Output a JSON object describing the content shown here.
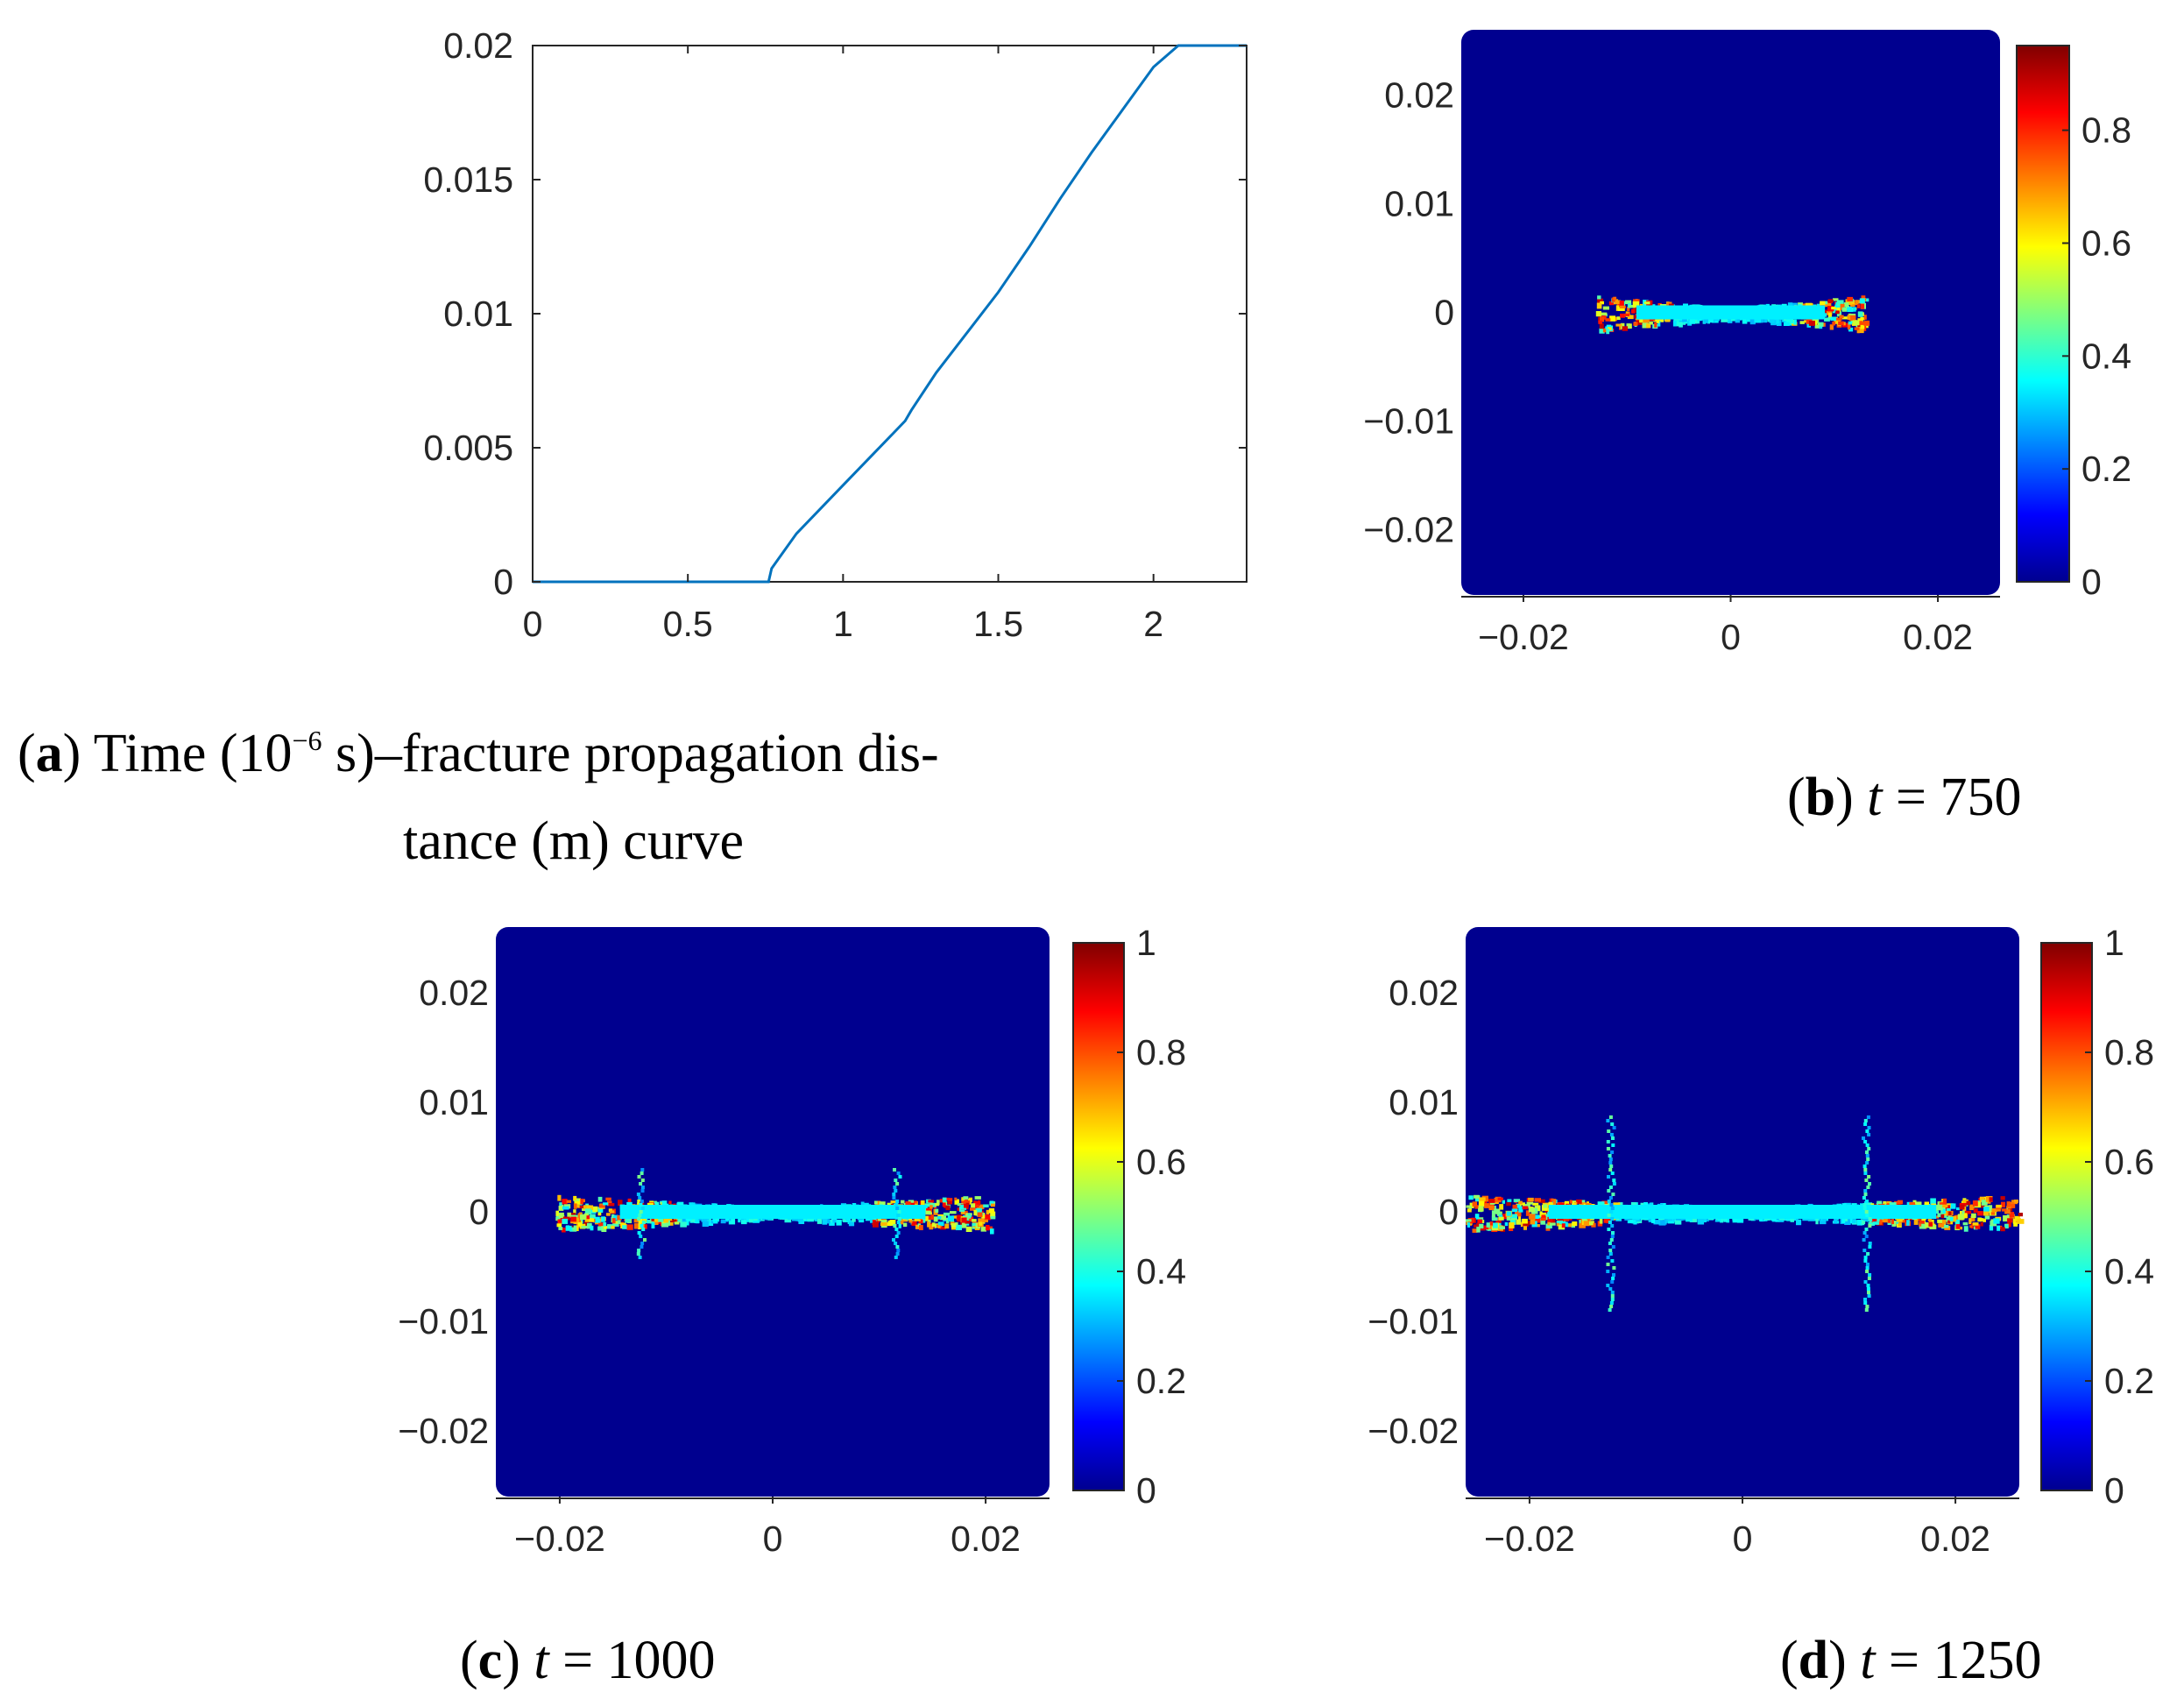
{
  "chart_data": [
    {
      "panel": "a",
      "type": "line",
      "caption": {
        "label": "a",
        "line1": "Time (10",
        "exp": "−6",
        "line1_rest": " s)–fracture propagation dis-",
        "line2": "tance (m) curve"
      },
      "xlim": [
        0,
        2.3
      ],
      "ylim": [
        0,
        0.02
      ],
      "xticks": [
        0,
        0.5,
        1,
        1.5,
        2
      ],
      "xtick_labels": [
        "0",
        "0.5",
        "1",
        "1.5",
        "2"
      ],
      "yticks": [
        0,
        0.005,
        0.01,
        0.015,
        0.02
      ],
      "ytick_labels": [
        "0",
        "0.005",
        "0.01",
        "0.015",
        "0.02"
      ],
      "line_color": "#0072BD",
      "x": [
        0,
        0.76,
        0.77,
        0.85,
        1.0,
        1.1,
        1.2,
        1.22,
        1.3,
        1.4,
        1.5,
        1.6,
        1.7,
        1.8,
        1.9,
        2.0,
        2.08,
        2.3
      ],
      "y": [
        0,
        0,
        0.0005,
        0.0018,
        0.0036,
        0.0048,
        0.006,
        0.0064,
        0.0078,
        0.0093,
        0.0108,
        0.0125,
        0.0143,
        0.016,
        0.0176,
        0.0192,
        0.02,
        0.02
      ]
    },
    {
      "panel": "b",
      "type": "heatmap",
      "caption": {
        "label": "b",
        "var": "t",
        "text": " = 750"
      },
      "xlim": [
        -0.026,
        0.026
      ],
      "ylim": [
        -0.026,
        0.026
      ],
      "xticks": [
        -0.02,
        0,
        0.02
      ],
      "xtick_labels": [
        "−0.02",
        "0",
        "0.02"
      ],
      "yticks": [
        0.02,
        0.01,
        0,
        -0.01,
        -0.02
      ],
      "ytick_labels": [
        "0.02",
        "0.01",
        "0",
        "−0.01",
        "−0.02"
      ],
      "colorbar_ticks": [
        0,
        0.2,
        0.4,
        0.6,
        0.8
      ],
      "colorbar_labels": [
        "0",
        "0.2",
        "0.4",
        "0.6",
        "0.8"
      ],
      "colorbar_max": 0.95,
      "crack_half_length": 0.013,
      "branch_x": []
    },
    {
      "panel": "c",
      "type": "heatmap",
      "caption": {
        "label": "c",
        "var": "t",
        "text": " = 1000"
      },
      "xlim": [
        -0.026,
        0.026
      ],
      "ylim": [
        -0.026,
        0.026
      ],
      "xticks": [
        -0.02,
        0,
        0.02
      ],
      "xtick_labels": [
        "−0.02",
        "0",
        "0.02"
      ],
      "yticks": [
        0.02,
        0.01,
        0,
        -0.01,
        -0.02
      ],
      "ytick_labels": [
        "0.02",
        "0.01",
        "0",
        "−0.01",
        "−0.02"
      ],
      "colorbar_ticks": [
        0,
        0.2,
        0.4,
        0.6,
        0.8,
        1
      ],
      "colorbar_labels": [
        "0",
        "0.2",
        "0.4",
        "0.6",
        "0.8",
        "1"
      ],
      "colorbar_max": 1,
      "crack_half_length": 0.0205,
      "branch_x": [
        -0.0125,
        0.0115
      ]
    },
    {
      "panel": "d",
      "type": "heatmap",
      "caption": {
        "label": "d",
        "var": "t",
        "text": " = 1250"
      },
      "xlim": [
        -0.026,
        0.026
      ],
      "ylim": [
        -0.026,
        0.026
      ],
      "xticks": [
        -0.02,
        0,
        0.02
      ],
      "xtick_labels": [
        "−0.02",
        "0",
        "0.02"
      ],
      "yticks": [
        0.02,
        0.01,
        0,
        -0.01,
        -0.02
      ],
      "ytick_labels": [
        "0.02",
        "0.01",
        "0",
        "−0.01",
        "−0.02"
      ],
      "colorbar_ticks": [
        0,
        0.2,
        0.4,
        0.6,
        0.8,
        1
      ],
      "colorbar_labels": [
        "0",
        "0.2",
        "0.4",
        "0.6",
        "0.8",
        "1"
      ],
      "colorbar_max": 1,
      "crack_half_length": 0.026,
      "branch_x": [
        -0.0125,
        0.0115
      ]
    }
  ],
  "colors": {
    "background_field": "#00008F",
    "axis": "#262626",
    "curve": "#0072BD"
  }
}
